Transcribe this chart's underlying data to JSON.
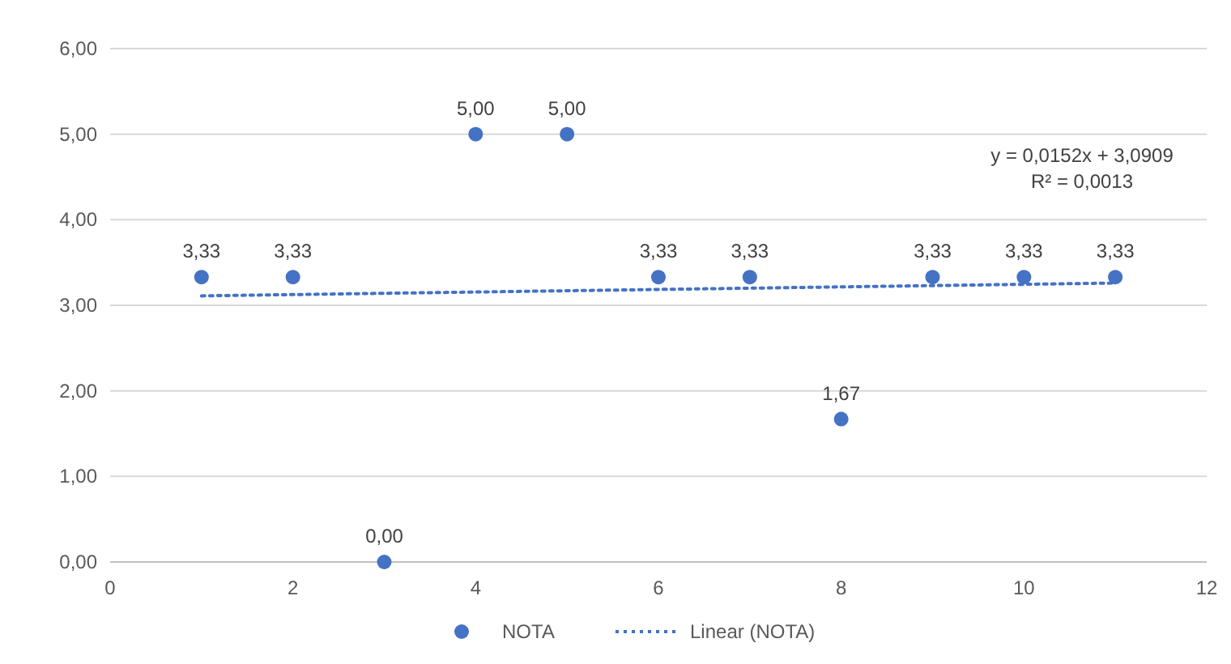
{
  "chart_data": {
    "type": "scatter",
    "x": [
      1,
      2,
      3,
      4,
      5,
      6,
      7,
      8,
      9,
      10,
      11
    ],
    "series": [
      {
        "name": "NOTA",
        "color": "#4472c4",
        "marker": "circle",
        "values": [
          3.33,
          3.33,
          0,
          5,
          5,
          3.33,
          3.33,
          1.67,
          3.33,
          3.33,
          3.33
        ],
        "value_labels": [
          "3,33",
          "3,33",
          "0,00",
          "5,00",
          "5,00",
          "3,33",
          "3,33",
          "1,67",
          "3,33",
          "3,33",
          "3,33"
        ]
      },
      {
        "name": "Linear (NOTA)",
        "type": "line",
        "color": "#4472c4",
        "line_style": "dotted",
        "x": [
          1,
          11
        ],
        "values": [
          3.11,
          3.26
        ]
      }
    ],
    "xlim": [
      0,
      12
    ],
    "xticks": [
      0,
      2,
      4,
      6,
      8,
      10,
      12
    ],
    "ylim": [
      0,
      6
    ],
    "yticks": [
      {
        "value": 0,
        "label": "0,00"
      },
      {
        "value": 1,
        "label": "1,00"
      },
      {
        "value": 2,
        "label": "2,00"
      },
      {
        "value": 3,
        "label": "3,00"
      },
      {
        "value": 4,
        "label": "4,00"
      },
      {
        "value": 5,
        "label": "5,00"
      },
      {
        "value": 6,
        "label": "6,00"
      }
    ],
    "grid": "y",
    "legend": "bottom",
    "annotations": [
      "y = 0,0152x + 3,0909",
      "R² = 0,0013"
    ]
  }
}
